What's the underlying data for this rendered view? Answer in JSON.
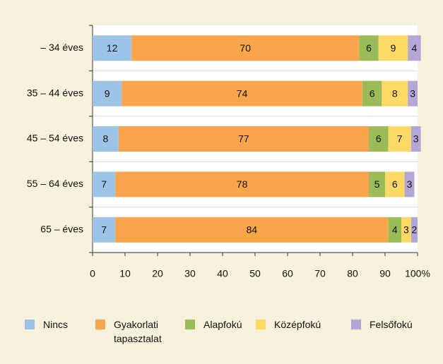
{
  "chart_data": {
    "type": "stacked-bar-horizontal",
    "categories": [
      "– 34 éves",
      "35 – 44 éves",
      "45 – 54 éves",
      "55 – 64 éves",
      "65 – éves"
    ],
    "series": [
      {
        "name": "Nincs",
        "color": "#9dc3e6",
        "values": [
          12,
          9,
          8,
          7,
          7
        ]
      },
      {
        "name": "Gyakorlati tapasztalat",
        "color": "#f9a54b",
        "values": [
          70,
          74,
          77,
          78,
          84
        ]
      },
      {
        "name": "Alapfokú",
        "color": "#9bbb59",
        "values": [
          6,
          6,
          6,
          5,
          4
        ]
      },
      {
        "name": "Középfokú",
        "color": "#ffd966",
        "values": [
          9,
          8,
          7,
          6,
          3
        ]
      },
      {
        "name": "Felsőfokú",
        "color": "#b4a7d6",
        "values": [
          4,
          3,
          3,
          3,
          2
        ]
      }
    ],
    "xlim": [
      0,
      100
    ],
    "xticks": [
      0,
      10,
      20,
      30,
      40,
      50,
      60,
      70,
      80,
      90,
      {
        "value": 100,
        "label": "100%"
      }
    ],
    "grid": false
  }
}
